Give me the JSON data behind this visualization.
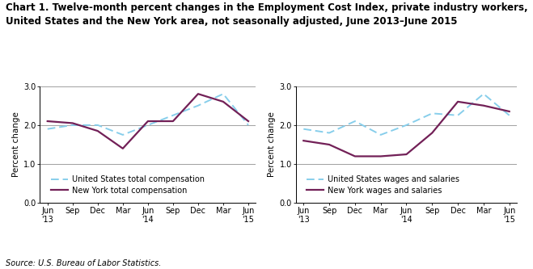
{
  "title_line1": "Chart 1. Twelve-month percent changes in the Employment Cost Index, private industry workers,",
  "title_line2": "United States and the New York area, not seasonally adjusted, June 2013–June 2015",
  "ylabel": "Percent change",
  "source": "Source: U.S. Bureau of Labor Statistics.",
  "x_labels": [
    "Jun\n'13",
    "Sep",
    "Dec",
    "Mar",
    "Jun\n'14",
    "Sep",
    "Dec",
    "Mar",
    "Jun\n'15"
  ],
  "x_positions": [
    0,
    1,
    2,
    3,
    4,
    5,
    6,
    7,
    8
  ],
  "ylim": [
    0.0,
    3.0
  ],
  "yticks": [
    0.0,
    1.0,
    2.0,
    3.0
  ],
  "chart1": {
    "us_total": [
      1.9,
      2.0,
      2.0,
      1.75,
      2.0,
      2.25,
      2.5,
      2.8,
      2.0
    ],
    "ny_total": [
      2.1,
      2.05,
      1.85,
      1.4,
      2.1,
      2.1,
      2.8,
      2.6,
      2.1
    ],
    "legend1": "United States total compensation",
    "legend2": "New York total compensation"
  },
  "chart2": {
    "us_wages": [
      1.9,
      1.8,
      2.1,
      1.75,
      2.0,
      2.3,
      2.25,
      2.8,
      2.25
    ],
    "ny_wages": [
      1.6,
      1.5,
      1.2,
      1.2,
      1.25,
      1.8,
      2.6,
      2.5,
      2.35
    ],
    "legend1": "United States wages and salaries",
    "legend2": "New York wages and salaries"
  },
  "us_color": "#87CEEB",
  "ny_color": "#722057",
  "us_linewidth": 1.4,
  "ny_linewidth": 1.6,
  "grid_color": "#909090",
  "background_color": "#ffffff",
  "title_fontsize": 8.5,
  "label_fontsize": 7.5,
  "tick_fontsize": 7.0,
  "legend_fontsize": 7.0,
  "source_fontsize": 7.0
}
